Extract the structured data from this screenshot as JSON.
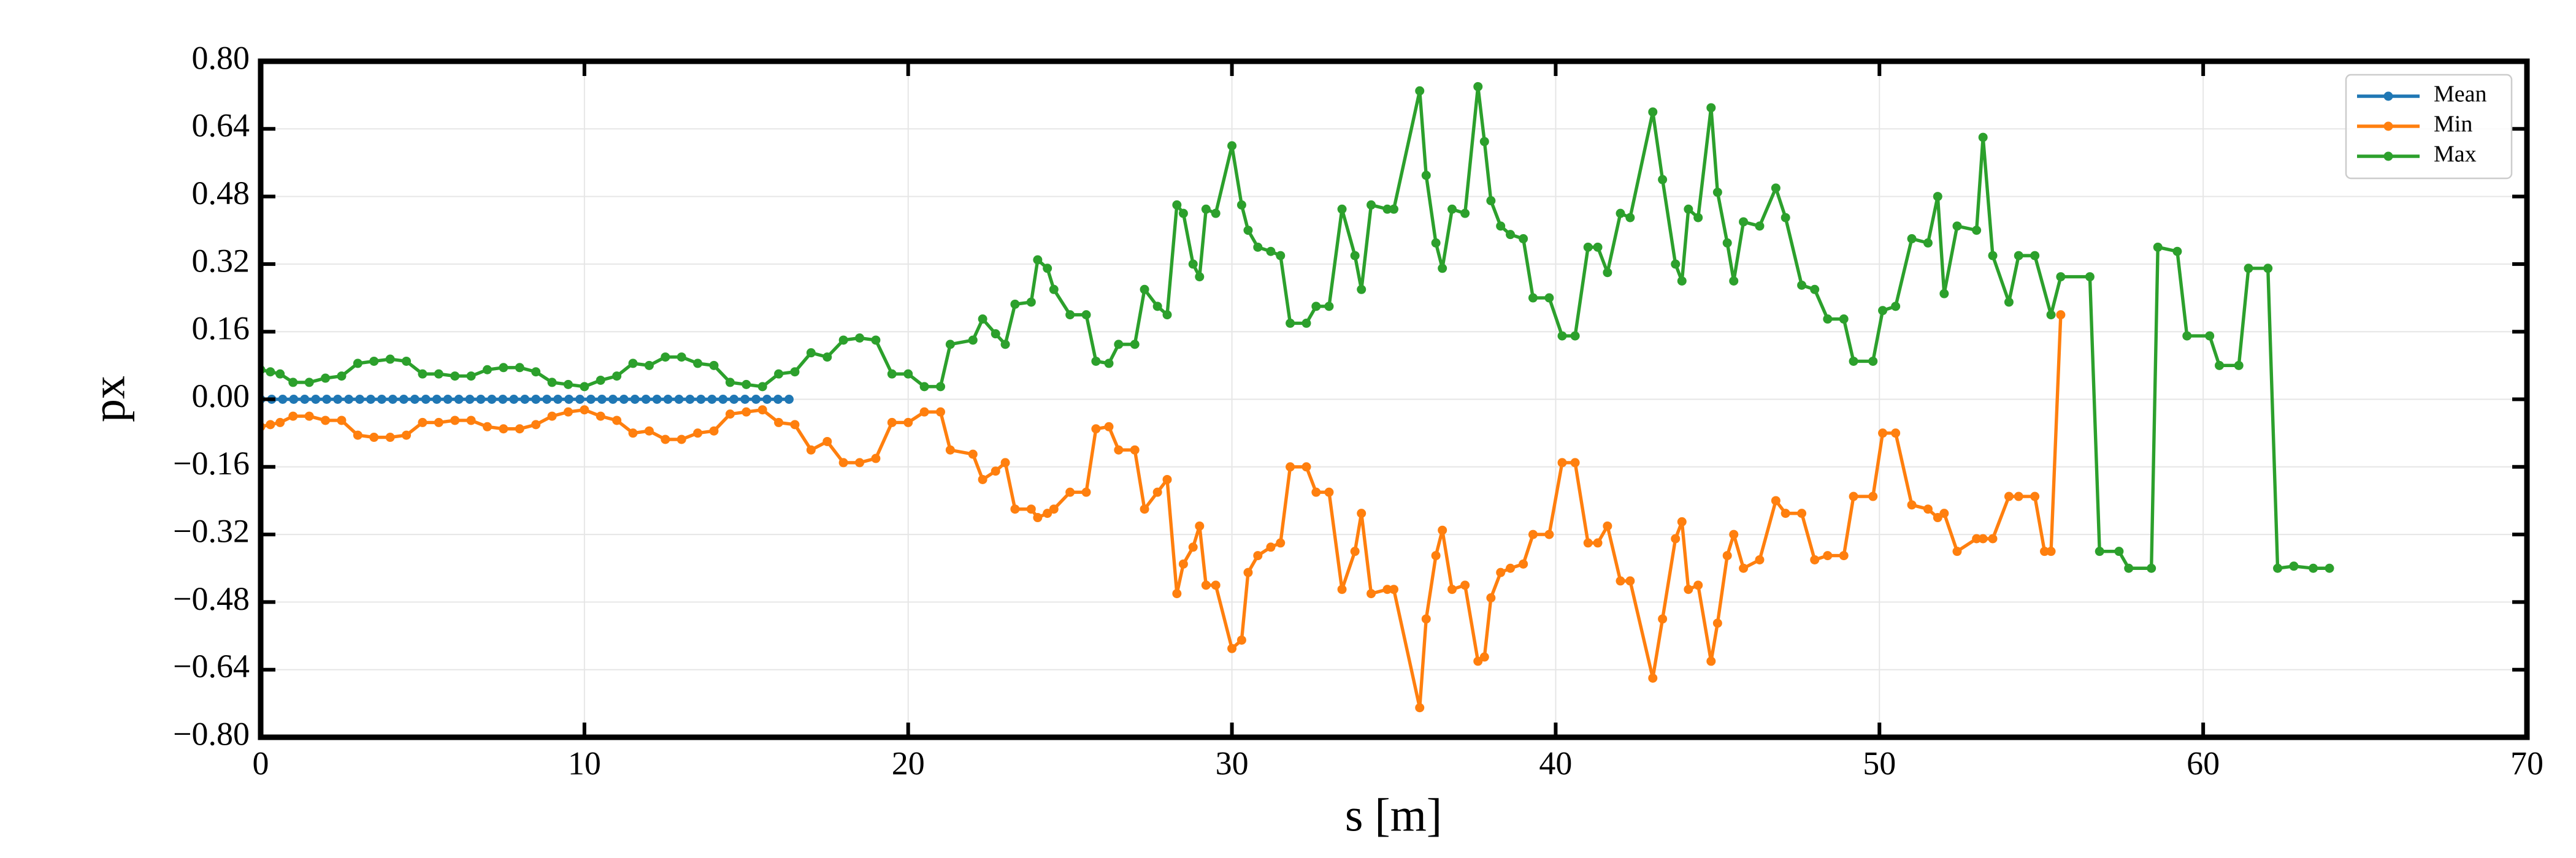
{
  "chart_data": {
    "type": "line",
    "xlabel": "s [m]",
    "ylabel": "px",
    "xlim": [
      0,
      70
    ],
    "ylim": [
      -0.8,
      0.8
    ],
    "xticks": [
      0,
      10,
      20,
      30,
      40,
      50,
      60,
      70
    ],
    "yticks": [
      {
        "value": -0.8,
        "label": "−0.80"
      },
      {
        "value": -0.64,
        "label": "−0.64"
      },
      {
        "value": -0.48,
        "label": "−0.48"
      },
      {
        "value": -0.32,
        "label": "−0.32"
      },
      {
        "value": -0.16,
        "label": "−0.16"
      },
      {
        "value": 0,
        "label": "0.00"
      },
      {
        "value": 0.16,
        "label": "0.16"
      },
      {
        "value": 0.32,
        "label": "0.32"
      },
      {
        "value": 0.48,
        "label": "0.48"
      },
      {
        "value": 0.64,
        "label": "0.64"
      },
      {
        "value": 0.8,
        "label": "0.80"
      }
    ],
    "grid": true,
    "legend": "upper right",
    "series": [
      {
        "name": "Mean",
        "color": "#1f77b4",
        "x": [
          0,
          0.34,
          0.68,
          1.02,
          1.36,
          1.7,
          2.04,
          2.38,
          2.72,
          3.06,
          3.4,
          3.74,
          4.08,
          4.42,
          4.76,
          5.1,
          5.44,
          5.78,
          6.12,
          6.46,
          6.8,
          7.14,
          7.48,
          7.82,
          8.16,
          8.5,
          8.84,
          9.18,
          9.52,
          9.86,
          10.2,
          10.54,
          10.88,
          11.22,
          11.56,
          11.9,
          12.24,
          12.58,
          12.92,
          13.26,
          13.6,
          13.94,
          14.28,
          14.62,
          14.96,
          15.3,
          15.64,
          15.98,
          16.32
        ],
        "values": [
          0,
          0,
          0,
          0,
          0,
          0,
          0,
          0,
          0,
          0,
          0,
          0,
          0,
          0,
          0,
          0,
          0,
          0,
          0,
          0,
          0,
          0,
          0,
          0,
          0,
          0,
          0,
          0,
          0,
          0,
          0,
          0,
          0,
          0,
          0,
          0,
          0,
          0,
          0,
          0,
          0,
          0,
          0,
          0,
          0,
          0,
          0,
          0,
          0
        ]
      },
      {
        "name": "Min",
        "color": "#ff7f0e",
        "x": [
          0,
          0.3,
          0.6,
          1,
          1.5,
          2,
          2.5,
          3,
          3.5,
          4,
          4.5,
          5,
          5.5,
          6,
          6.5,
          7,
          7.5,
          8,
          8.5,
          9,
          9.5,
          10,
          10.5,
          11,
          11.5,
          12,
          12.5,
          13,
          13.5,
          14,
          14.5,
          15,
          15.5,
          16,
          16.5,
          17,
          17.5,
          18,
          18.5,
          19,
          19.5,
          20,
          20.5,
          21,
          21.3,
          22,
          22.3,
          22.7,
          23,
          23.3,
          23.8,
          24,
          24.3,
          24.5,
          25,
          25.5,
          25.8,
          26.2,
          26.5,
          27,
          27.3,
          27.7,
          28,
          28.3,
          28.5,
          28.8,
          29,
          29.2,
          29.5,
          30,
          30.3,
          30.5,
          30.8,
          31.2,
          31.5,
          31.8,
          32.3,
          32.6,
          33,
          33.4,
          33.8,
          34,
          34.3,
          34.8,
          35,
          35.8,
          36,
          36.3,
          36.5,
          36.8,
          37.2,
          37.6,
          37.8,
          38,
          38.3,
          38.6,
          39,
          39.3,
          39.8,
          40.2,
          40.6,
          41,
          41.3,
          41.6,
          42,
          42.3,
          43,
          43.3,
          43.7,
          43.9,
          44.1,
          44.4,
          44.8,
          45,
          45.3,
          45.5,
          45.8,
          46.3,
          46.8,
          47.1,
          47.6,
          48,
          48.4,
          48.9,
          49.2,
          49.8,
          50.1,
          50.5,
          51,
          51.5,
          51.8,
          52,
          52.4,
          53,
          53.2,
          53.5,
          54,
          54.3,
          54.8,
          55.1,
          55.3,
          55.6
        ],
        "values": [
          -0.065,
          -0.06,
          -0.055,
          -0.04,
          -0.04,
          -0.05,
          -0.05,
          -0.085,
          -0.09,
          -0.09,
          -0.085,
          -0.055,
          -0.055,
          -0.05,
          -0.05,
          -0.065,
          -0.07,
          -0.07,
          -0.06,
          -0.04,
          -0.03,
          -0.025,
          -0.04,
          -0.05,
          -0.08,
          -0.075,
          -0.095,
          -0.095,
          -0.08,
          -0.075,
          -0.035,
          -0.03,
          -0.025,
          -0.055,
          -0.06,
          -0.12,
          -0.1,
          -0.15,
          -0.15,
          -0.14,
          -0.055,
          -0.055,
          -0.03,
          -0.03,
          -0.12,
          -0.13,
          -0.19,
          -0.17,
          -0.15,
          -0.26,
          -0.26,
          -0.28,
          -0.27,
          -0.26,
          -0.22,
          -0.22,
          -0.07,
          -0.065,
          -0.12,
          -0.12,
          -0.26,
          -0.22,
          -0.19,
          -0.46,
          -0.39,
          -0.35,
          -0.3,
          -0.44,
          -0.44,
          -0.59,
          -0.57,
          -0.41,
          -0.37,
          -0.35,
          -0.34,
          -0.16,
          -0.16,
          -0.22,
          -0.22,
          -0.45,
          -0.36,
          -0.27,
          -0.46,
          -0.45,
          -0.45,
          -0.73,
          -0.52,
          -0.37,
          -0.31,
          -0.45,
          -0.44,
          -0.62,
          -0.61,
          -0.47,
          -0.41,
          -0.4,
          -0.39,
          -0.32,
          -0.32,
          -0.15,
          -0.15,
          -0.34,
          -0.34,
          -0.3,
          -0.43,
          -0.43,
          -0.66,
          -0.52,
          -0.33,
          -0.29,
          -0.45,
          -0.44,
          -0.62,
          -0.53,
          -0.37,
          -0.32,
          -0.4,
          -0.38,
          -0.24,
          -0.27,
          -0.27,
          -0.38,
          -0.37,
          -0.37,
          -0.23,
          -0.23,
          -0.08,
          -0.08,
          -0.25,
          -0.26,
          -0.28,
          -0.27,
          -0.36,
          -0.33,
          -0.33,
          -0.33,
          -0.23,
          -0.23,
          -0.23,
          -0.36,
          -0.36,
          0.2
        ]
      },
      {
        "name": "Max",
        "color": "#2ca02c",
        "x": [
          0,
          0.3,
          0.6,
          1,
          1.5,
          2,
          2.5,
          3,
          3.5,
          4,
          4.5,
          5,
          5.5,
          6,
          6.5,
          7,
          7.5,
          8,
          8.5,
          9,
          9.5,
          10,
          10.5,
          11,
          11.5,
          12,
          12.5,
          13,
          13.5,
          14,
          14.5,
          15,
          15.5,
          16,
          16.5,
          17,
          17.5,
          18,
          18.5,
          19,
          19.5,
          20,
          20.5,
          21,
          21.3,
          22,
          22.3,
          22.7,
          23,
          23.3,
          23.8,
          24,
          24.3,
          24.5,
          25,
          25.5,
          25.8,
          26.2,
          26.5,
          27,
          27.3,
          27.7,
          28,
          28.3,
          28.5,
          28.8,
          29,
          29.2,
          29.5,
          30,
          30.3,
          30.5,
          30.8,
          31.2,
          31.5,
          31.8,
          32.3,
          32.6,
          33,
          33.4,
          33.8,
          34,
          34.3,
          34.8,
          35,
          35.8,
          36,
          36.3,
          36.5,
          36.8,
          37.2,
          37.6,
          37.8,
          38,
          38.3,
          38.6,
          39,
          39.3,
          39.8,
          40.2,
          40.6,
          41,
          41.3,
          41.6,
          42,
          42.3,
          43,
          43.3,
          43.7,
          43.9,
          44.1,
          44.4,
          44.8,
          45,
          45.3,
          45.5,
          45.8,
          46.3,
          46.8,
          47.1,
          47.6,
          48,
          48.4,
          48.9,
          49.2,
          49.8,
          50.1,
          50.5,
          51,
          51.5,
          51.8,
          52,
          52.4,
          53,
          53.2,
          53.5,
          54,
          54.3,
          54.8,
          55.3,
          55.6,
          56.5,
          56.8,
          57.4,
          57.7,
          58.4,
          58.6,
          59.2,
          59.5,
          60.2,
          60.5,
          61.1,
          61.4,
          62,
          62.3,
          62.8,
          63.4,
          63.9
        ],
        "values": [
          0.07,
          0.065,
          0.06,
          0.04,
          0.04,
          0.05,
          0.055,
          0.085,
          0.09,
          0.095,
          0.09,
          0.06,
          0.06,
          0.055,
          0.055,
          0.07,
          0.075,
          0.075,
          0.065,
          0.04,
          0.035,
          0.03,
          0.045,
          0.055,
          0.085,
          0.08,
          0.1,
          0.1,
          0.085,
          0.08,
          0.04,
          0.035,
          0.03,
          0.06,
          0.065,
          0.11,
          0.1,
          0.14,
          0.145,
          0.14,
          0.06,
          0.06,
          0.03,
          0.03,
          0.13,
          0.14,
          0.19,
          0.155,
          0.13,
          0.225,
          0.23,
          0.33,
          0.31,
          0.26,
          0.2,
          0.2,
          0.09,
          0.085,
          0.13,
          0.13,
          0.26,
          0.22,
          0.2,
          0.46,
          0.44,
          0.32,
          0.29,
          0.45,
          0.44,
          0.6,
          0.46,
          0.4,
          0.36,
          0.35,
          0.34,
          0.18,
          0.18,
          0.22,
          0.22,
          0.45,
          0.34,
          0.26,
          0.46,
          0.45,
          0.45,
          0.73,
          0.53,
          0.37,
          0.31,
          0.45,
          0.44,
          0.74,
          0.61,
          0.47,
          0.41,
          0.39,
          0.38,
          0.24,
          0.24,
          0.15,
          0.15,
          0.36,
          0.36,
          0.3,
          0.44,
          0.43,
          0.68,
          0.52,
          0.32,
          0.28,
          0.45,
          0.43,
          0.69,
          0.49,
          0.37,
          0.28,
          0.42,
          0.41,
          0.5,
          0.43,
          0.27,
          0.26,
          0.19,
          0.19,
          0.09,
          0.09,
          0.21,
          0.22,
          0.38,
          0.37,
          0.48,
          0.25,
          0.41,
          0.4,
          0.62,
          0.34,
          0.23,
          0.34,
          0.34,
          0.2,
          0.29,
          0.29,
          -0.36,
          -0.36,
          -0.4,
          -0.4,
          0.36,
          0.35,
          0.15,
          0.15,
          0.08,
          0.08,
          0.31,
          0.31,
          -0.4,
          -0.395,
          -0.4,
          -0.4
        ]
      }
    ]
  }
}
